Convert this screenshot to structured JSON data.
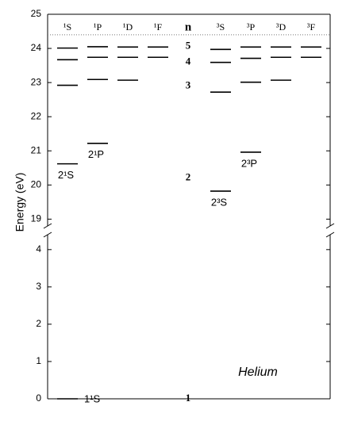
{
  "chart_data": {
    "type": "levels",
    "ylabel": "Energy (eV)",
    "annotation": "Helium",
    "ylim_upper": [
      18.8,
      25
    ],
    "yticks_upper": [
      19,
      20,
      21,
      22,
      23,
      24,
      25
    ],
    "ylim_lower": [
      0,
      4.4
    ],
    "yticks_lower": [
      0,
      1,
      2,
      3,
      4
    ],
    "ionization_limit": 24.4,
    "color": "#000000",
    "columns": [
      {
        "name": "¹S",
        "levels": [
          0,
          20.62,
          22.92,
          23.67,
          24.01
        ],
        "labels": [
          "1¹S",
          "2¹S",
          null,
          null,
          null
        ]
      },
      {
        "name": "¹P",
        "levels": [
          21.22,
          23.09,
          23.74,
          24.05
        ],
        "labels": [
          "2¹P",
          null,
          null,
          null
        ]
      },
      {
        "name": "¹D",
        "levels": [
          23.07,
          23.74,
          24.04
        ],
        "labels": [
          null,
          null,
          null
        ]
      },
      {
        "name": "¹F",
        "levels": [
          23.74,
          24.04
        ],
        "labels": [
          null,
          null
        ]
      },
      {
        "name": "³S",
        "levels": [
          19.82,
          22.72,
          23.59,
          23.97
        ],
        "labels": [
          "2³S",
          null,
          null,
          null
        ]
      },
      {
        "name": "³P",
        "levels": [
          20.96,
          23.01,
          23.71,
          24.04
        ],
        "labels": [
          "2³P",
          null,
          null,
          null
        ]
      },
      {
        "name": "³D",
        "levels": [
          23.07,
          23.74,
          24.04
        ],
        "labels": [
          null,
          null,
          null
        ]
      },
      {
        "name": "³F",
        "levels": [
          23.74,
          24.04
        ],
        "labels": [
          null,
          null
        ]
      }
    ],
    "n_column": {
      "name": "n",
      "labels": [
        "1",
        "2",
        "3",
        "4",
        "5"
      ],
      "values": [
        0,
        20.2,
        22.9,
        23.6,
        24.06
      ]
    }
  }
}
